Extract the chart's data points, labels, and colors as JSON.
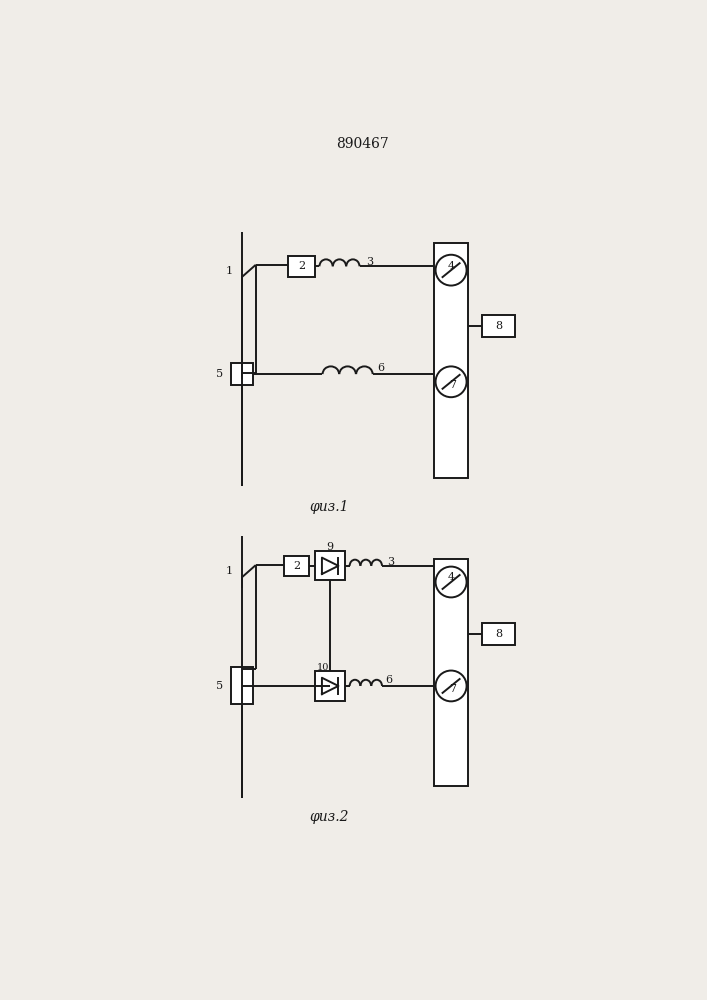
{
  "title": "890467",
  "fig1_caption": "φиз.1",
  "fig2_caption": "φиз.2",
  "bg_color": "#f0ede8",
  "line_color": "#1a1a1a",
  "lw": 1.4
}
